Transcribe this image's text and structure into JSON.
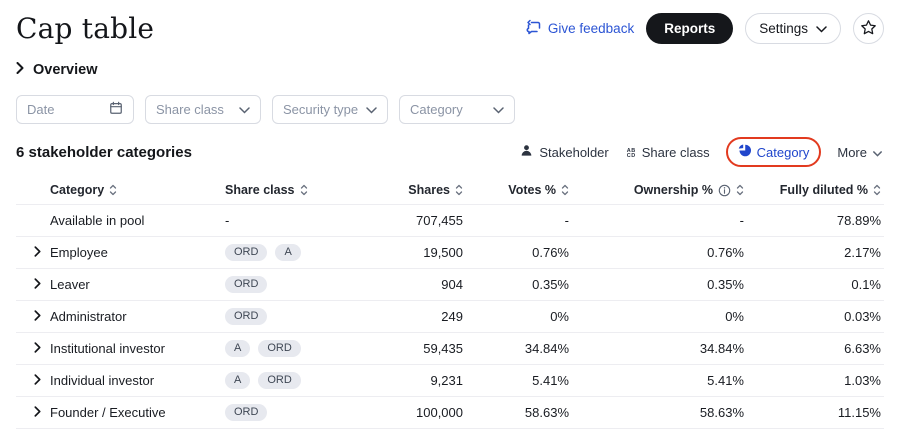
{
  "header": {
    "title": "Cap table",
    "give_feedback_label": "Give feedback",
    "reports_label": "Reports",
    "settings_label": "Settings"
  },
  "breadcrumb": {
    "label": "Overview"
  },
  "filters": [
    {
      "placeholder": "Date",
      "icon": "calendar-icon",
      "type": "date"
    },
    {
      "placeholder": "Share class",
      "icon": "chevron-down-icon",
      "type": "select"
    },
    {
      "placeholder": "Security type",
      "icon": "chevron-down-icon",
      "type": "select"
    },
    {
      "placeholder": "Category",
      "icon": "chevron-down-icon",
      "type": "select"
    }
  ],
  "section": {
    "title": "6 stakeholder categories",
    "views": [
      {
        "label": "Stakeholder",
        "icon": "person-icon",
        "active": false,
        "annotated": false,
        "chevron": false
      },
      {
        "label": "Share class",
        "icon": "letter-grid-icon",
        "active": false,
        "annotated": false,
        "chevron": false
      },
      {
        "label": "Category",
        "icon": "pie-chart-icon",
        "active": true,
        "annotated": true,
        "chevron": false
      },
      {
        "label": "More",
        "icon": null,
        "active": false,
        "annotated": false,
        "chevron": true
      }
    ]
  },
  "table": {
    "columns": [
      {
        "label": "Category",
        "align": "left",
        "info": false
      },
      {
        "label": "Share class",
        "align": "left",
        "info": false
      },
      {
        "label": "Shares",
        "align": "right",
        "info": false
      },
      {
        "label": "Votes %",
        "align": "right",
        "info": false
      },
      {
        "label": "Ownership %",
        "align": "right",
        "info": true
      },
      {
        "label": "Fully diluted %",
        "align": "right",
        "info": false
      }
    ],
    "rows": [
      {
        "category": "Available in pool",
        "expandable": false,
        "share_classes": [],
        "shares": "707,455",
        "votes": "-",
        "ownership": "-",
        "fully_diluted": "78.89%"
      },
      {
        "category": "Employee",
        "expandable": true,
        "share_classes": [
          "ORD",
          "A"
        ],
        "shares": "19,500",
        "votes": "0.76%",
        "ownership": "0.76%",
        "fully_diluted": "2.17%"
      },
      {
        "category": "Leaver",
        "expandable": true,
        "share_classes": [
          "ORD"
        ],
        "shares": "904",
        "votes": "0.35%",
        "ownership": "0.35%",
        "fully_diluted": "0.1%"
      },
      {
        "category": "Administrator",
        "expandable": true,
        "share_classes": [
          "ORD"
        ],
        "shares": "249",
        "votes": "0%",
        "ownership": "0%",
        "fully_diluted": "0.03%"
      },
      {
        "category": "Institutional investor",
        "expandable": true,
        "share_classes": [
          "A",
          "ORD"
        ],
        "shares": "59,435",
        "votes": "34.84%",
        "ownership": "34.84%",
        "fully_diluted": "6.63%"
      },
      {
        "category": "Individual investor",
        "expandable": true,
        "share_classes": [
          "A",
          "ORD"
        ],
        "shares": "9,231",
        "votes": "5.41%",
        "ownership": "5.41%",
        "fully_diluted": "1.03%"
      },
      {
        "category": "Founder / Executive",
        "expandable": true,
        "share_classes": [
          "ORD"
        ],
        "shares": "100,000",
        "votes": "58.63%",
        "ownership": "58.63%",
        "fully_diluted": "11.15%"
      }
    ],
    "empty_value": "-"
  },
  "colors": {
    "accent_blue": "#2c55d4",
    "active_blue": "#2046cc",
    "annotation_red": "#e23a1f",
    "badge_bg": "#e7e9ef",
    "dark_button_bg": "#15171b",
    "border": "#d8dbe2",
    "row_divider": "#ededf1"
  }
}
